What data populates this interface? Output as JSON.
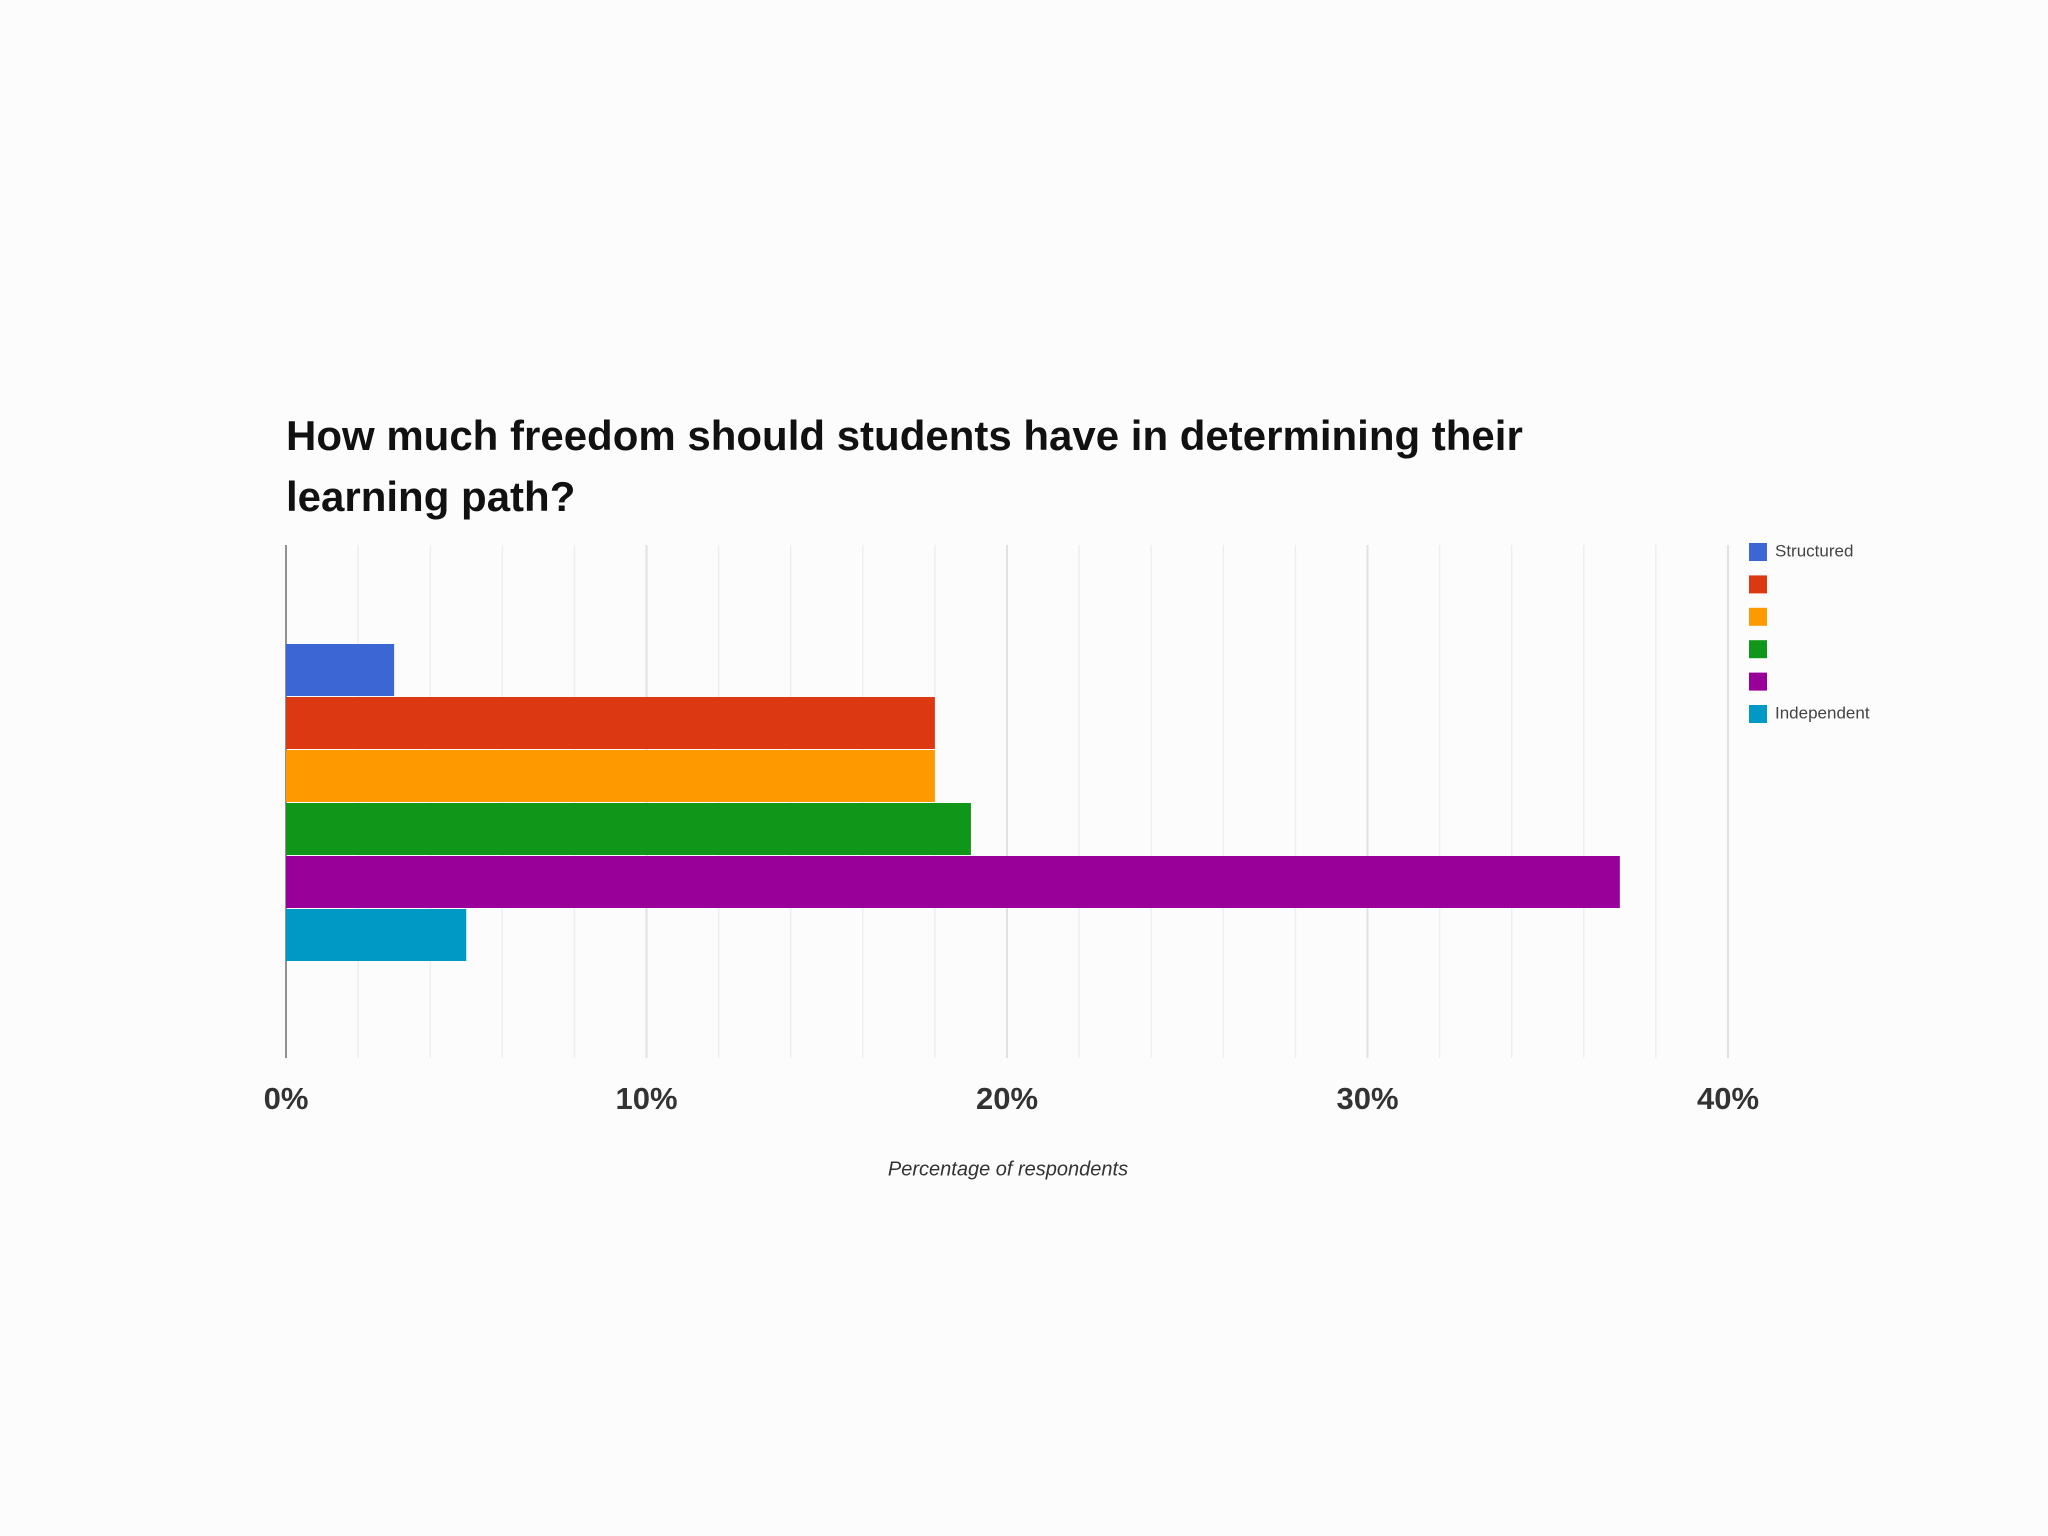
{
  "chart_data": {
    "type": "bar",
    "orientation": "horizontal",
    "title": "How much freedom should students have in determining their learning path?",
    "x_label": "Percentage of respondents",
    "series": [
      {
        "name": "Structured",
        "color": "#3b66d4",
        "values": [
          3
        ]
      },
      {
        "name": null,
        "color": "#dc3912",
        "values": [
          18
        ]
      },
      {
        "name": null,
        "color": "#ff9900",
        "values": [
          18
        ]
      },
      {
        "name": null,
        "color": "#109618",
        "values": [
          19
        ]
      },
      {
        "name": null,
        "color": "#990099",
        "values": [
          37
        ]
      },
      {
        "name": "Independent",
        "color": "#0099c6",
        "values": [
          5
        ]
      }
    ],
    "xlim": [
      0,
      40
    ],
    "xticks": [
      {
        "value": 0,
        "label": "0%"
      },
      {
        "value": 10,
        "label": "10%"
      },
      {
        "value": 20,
        "label": "20%"
      },
      {
        "value": 30,
        "label": "30%"
      },
      {
        "value": 40,
        "label": "40%"
      }
    ],
    "minor_xticks": [
      2,
      4,
      6,
      8,
      12,
      14,
      16,
      18,
      22,
      24,
      26,
      28,
      32,
      34,
      36,
      38
    ],
    "grid": true,
    "legend": "right"
  }
}
